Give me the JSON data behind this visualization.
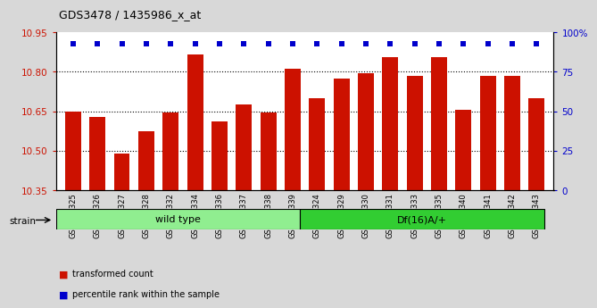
{
  "title": "GDS3478 / 1435986_x_at",
  "categories": [
    "GSM272325",
    "GSM272326",
    "GSM272327",
    "GSM272328",
    "GSM272332",
    "GSM272334",
    "GSM272336",
    "GSM272337",
    "GSM272338",
    "GSM272339",
    "GSM272324",
    "GSM272329",
    "GSM272330",
    "GSM272331",
    "GSM272333",
    "GSM272335",
    "GSM272340",
    "GSM272341",
    "GSM272342",
    "GSM272343"
  ],
  "bar_values": [
    10.65,
    10.63,
    10.49,
    10.575,
    10.645,
    10.865,
    10.61,
    10.675,
    10.645,
    10.81,
    10.7,
    10.775,
    10.795,
    10.855,
    10.785,
    10.855,
    10.655,
    10.785,
    10.785,
    10.7
  ],
  "percentile_values": [
    93,
    93,
    93,
    93,
    93,
    93,
    93,
    93,
    93,
    93,
    93,
    93,
    93,
    93,
    93,
    93,
    93,
    93,
    93,
    93
  ],
  "bar_color": "#cc1100",
  "percentile_color": "#0000cc",
  "ylim_left": [
    10.35,
    10.95
  ],
  "ylim_right": [
    0,
    100
  ],
  "yticks_left": [
    10.35,
    10.5,
    10.65,
    10.8,
    10.95
  ],
  "yticks_right": [
    0,
    25,
    50,
    75,
    100
  ],
  "grid_lines": [
    10.5,
    10.65,
    10.8
  ],
  "wild_type_count": 10,
  "df_count": 10,
  "wild_type_label": "wild type",
  "df_label": "Df(16)A/+",
  "strain_label": "strain",
  "legend_bar_label": "transformed count",
  "legend_pct_label": "percentile rank within the sample",
  "background_color": "#d8d8d8",
  "plot_bg_color": "#ffffff",
  "strain_wt_color": "#90ee90",
  "strain_df_color": "#32cd32",
  "bar_width": 0.65
}
